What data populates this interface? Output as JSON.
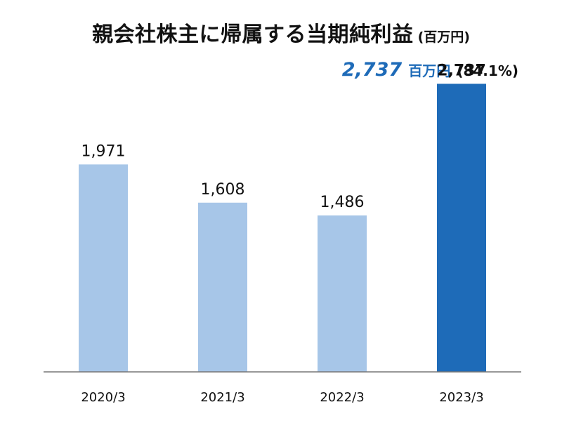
{
  "header": {
    "title": "親会社株主に帰属する当期純利益",
    "unit": "(百万円)"
  },
  "highlight": {
    "value": "2,737",
    "unit": "百万円",
    "ratio": "(84.1%)"
  },
  "colors": {
    "bar_default": "#a7c6e8",
    "bar_highlight": "#1e6bb8",
    "highlight_text": "#1e6bb8",
    "axis": "#777777"
  },
  "chart_data": {
    "type": "bar",
    "categories": [
      "2020/3",
      "2021/3",
      "2022/3",
      "2023/3"
    ],
    "values": [
      1971,
      1608,
      1486,
      2737
    ],
    "value_labels": [
      "1,971",
      "1,608",
      "1,486",
      "2,737"
    ],
    "highlight_index": 3,
    "ylim": [
      0,
      3000
    ],
    "grid": false,
    "legend": "none"
  }
}
